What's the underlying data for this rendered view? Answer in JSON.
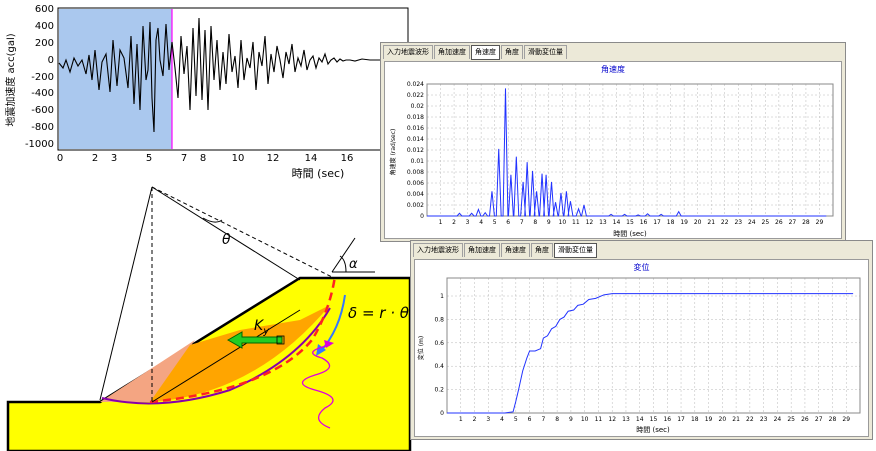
{
  "seismic_plot": {
    "y_label": "地震加速度 acc(gal)",
    "x_label": "時間 (sec)",
    "y_ticks": [
      "600",
      "400",
      "200",
      "0",
      "-200",
      "-400",
      "-600",
      "-800",
      "-1000"
    ],
    "x_ticks": [
      "0",
      "2",
      "3",
      "5",
      "7",
      "8",
      "10",
      "12",
      "14",
      "16"
    ],
    "colors": {
      "highlight": "#aac8ee",
      "marker": "#ff00ff",
      "trace": "#000000"
    }
  },
  "slope_diagram": {
    "theta_label": "θ",
    "alpha_label": "α",
    "ky_label": "K",
    "ky_sub": "y",
    "delta_formula": "δ = r · θ",
    "colors": {
      "ground": "#ffff00",
      "sliding_mass": "#ffa500",
      "light_mass": "#f4a582",
      "arrow": "#22cc22"
    }
  },
  "angular_velocity_window": {
    "tabs": [
      "入力地震波形",
      "角加速度",
      "角速度",
      "角度",
      "滑動変位量"
    ],
    "active_tab": 2,
    "title": "角速度",
    "y_label": "角速度 (rad/sec)",
    "x_label": "時間 (sec)",
    "y_ticks": [
      "0.024",
      "0.022",
      "0.02",
      "0.018",
      "0.016",
      "0.014",
      "0.012",
      "0.01",
      "0.008",
      "0.006",
      "0.004",
      "0.002",
      "0"
    ],
    "x_ticks": [
      "1",
      "2",
      "3",
      "4",
      "5",
      "6",
      "7",
      "8",
      "9",
      "10",
      "11",
      "12",
      "13",
      "14",
      "15",
      "16",
      "17",
      "18",
      "19",
      "20",
      "21",
      "22",
      "23",
      "24",
      "25",
      "26",
      "27",
      "28",
      "29"
    ]
  },
  "displacement_window": {
    "tabs": [
      "入力地震波形",
      "角加速度",
      "角速度",
      "角度",
      "滑動変位量"
    ],
    "active_tab": 4,
    "title": "変位",
    "y_label": "変位 (m)",
    "x_label": "時間 (sec)",
    "y_ticks": [
      "1",
      "0.8",
      "0.6",
      "0.4",
      "0.2",
      "0"
    ],
    "x_ticks": [
      "1",
      "2",
      "3",
      "4",
      "5",
      "6",
      "7",
      "8",
      "9",
      "10",
      "11",
      "12",
      "13",
      "14",
      "15",
      "16",
      "17",
      "18",
      "19",
      "20",
      "21",
      "22",
      "23",
      "24",
      "25",
      "26",
      "27",
      "28",
      "29"
    ]
  }
}
